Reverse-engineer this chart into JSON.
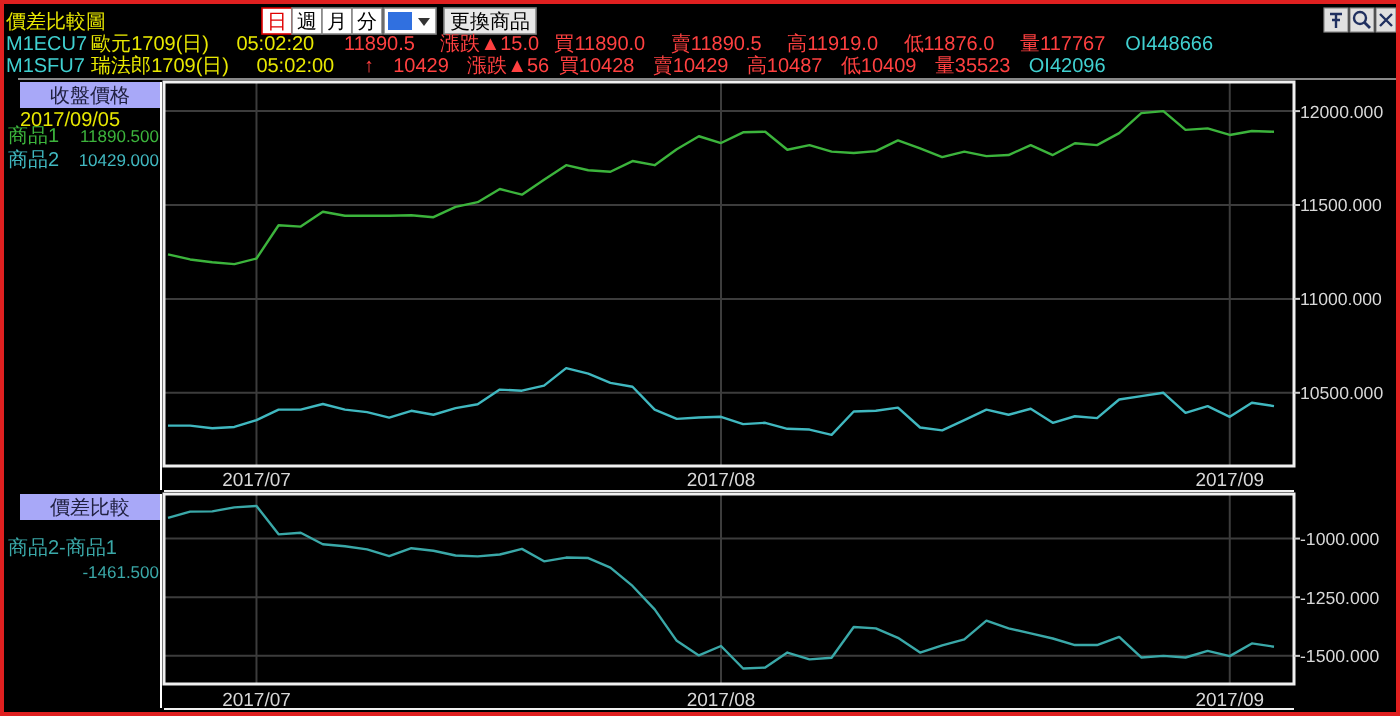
{
  "chart_data": [
    {
      "type": "line",
      "title": "收盤價格",
      "categories": [
        null,
        null,
        null,
        null,
        "2017/07",
        null,
        null,
        null,
        null,
        null,
        null,
        null,
        null,
        null,
        null,
        null,
        null,
        null,
        null,
        null,
        null,
        null,
        null,
        null,
        null,
        "2017/08",
        null,
        null,
        null,
        null,
        null,
        null,
        null,
        null,
        null,
        null,
        null,
        null,
        null,
        null,
        null,
        null,
        null,
        null,
        null,
        null,
        null,
        null,
        "2017/09",
        null,
        null
      ],
      "series": [
        {
          "name": "商品1",
          "color": "#3cb43c",
          "values": [
            11237,
            11210,
            11195,
            11185,
            11215,
            11392,
            11385,
            11464,
            11443,
            11443,
            11443,
            11445,
            11435,
            11490,
            11515,
            11585,
            11555,
            11635,
            11712,
            11685,
            11677,
            11734,
            11712,
            11797,
            11866,
            11830,
            11887,
            11890,
            11794,
            11819,
            11784,
            11777,
            11787,
            11844,
            11801,
            11755,
            11784,
            11760,
            11766,
            11819,
            11766,
            11829,
            11819,
            11883,
            11989,
            12000,
            11900,
            11908,
            11873,
            11894,
            11890
          ]
        },
        {
          "name": "商品2",
          "color": "#40b8c0",
          "values": [
            10325,
            10325,
            10311,
            10318,
            10354,
            10410,
            10410,
            10440,
            10410,
            10397,
            10368,
            10404,
            10383,
            10418,
            10439,
            10517,
            10511,
            10538,
            10631,
            10602,
            10553,
            10532,
            10410,
            10361,
            10368,
            10372,
            10333,
            10340,
            10308,
            10304,
            10276,
            10400,
            10404,
            10421,
            10315,
            10300,
            10354,
            10410,
            10383,
            10415,
            10340,
            10375,
            10365,
            10464,
            10482,
            10500,
            10393,
            10429,
            10372,
            10447,
            10429
          ]
        }
      ],
      "ylim": [
        10110,
        12155
      ],
      "yticks": [
        {
          "value": 10500,
          "label": "10500.000"
        },
        {
          "value": 11000,
          "label": "11000.000"
        },
        {
          "value": 11500,
          "label": "11500.000"
        },
        {
          "value": 12000,
          "label": "12000.000"
        }
      ],
      "grid": true,
      "legend": "left",
      "annotations": [
        "價差比較圖",
        "日",
        "週",
        "月",
        "分",
        "更換商品",
        "M1ECU7",
        "歐元1709(日)",
        "05:02:20",
        "11890.5",
        "漲跌▲15.0",
        "買11890.0",
        "賣11890.5",
        "高11919.0",
        "低11876.0",
        "量117767",
        "OI448666",
        "M1SFU7",
        "瑞法郎1709(日)",
        "05:02:00",
        "↑",
        "10429",
        "漲跌▲56",
        "買10428",
        "賣10429",
        "高10487",
        "低10409",
        "量35523",
        "OI42096",
        "2017/09/05",
        "11890.500",
        "10429.000"
      ]
    },
    {
      "type": "line",
      "title": "價差比較",
      "categories": [
        null,
        null,
        null,
        null,
        "2017/07",
        null,
        null,
        null,
        null,
        null,
        null,
        null,
        null,
        null,
        null,
        null,
        null,
        null,
        null,
        null,
        null,
        null,
        null,
        null,
        null,
        "2017/08",
        null,
        null,
        null,
        null,
        null,
        null,
        null,
        null,
        null,
        null,
        null,
        null,
        null,
        null,
        null,
        null,
        null,
        null,
        null,
        null,
        null,
        null,
        "2017/09",
        null,
        null
      ],
      "series": [
        {
          "name": "商品2-商品1",
          "color": "#3aa8a8",
          "values": [
            -912,
            -885,
            -884,
            -867,
            -861,
            -982,
            -975,
            -1024,
            -1033,
            -1046,
            -1075,
            -1041,
            -1052,
            -1072,
            -1076,
            -1068,
            -1044,
            -1097,
            -1081,
            -1083,
            -1124,
            -1202,
            -1302,
            -1436,
            -1498,
            -1458,
            -1554,
            -1550,
            -1486,
            -1515,
            -1508,
            -1377,
            -1383,
            -1423,
            -1486,
            -1455,
            -1430,
            -1350,
            -1383,
            -1404,
            -1426,
            -1454,
            -1454,
            -1419,
            -1507,
            -1500,
            -1507,
            -1479,
            -1501,
            -1447,
            -1461
          ]
        }
      ],
      "ylim": [
        -1620,
        -810
      ],
      "yticks": [
        {
          "value": -1500,
          "label": "-1500.000"
        },
        {
          "value": -1250,
          "label": "-1250.000"
        },
        {
          "value": -1000,
          "label": "-1000.000"
        }
      ],
      "grid": true,
      "legend": "left",
      "annotations": [
        "-1461.500"
      ]
    }
  ]
}
